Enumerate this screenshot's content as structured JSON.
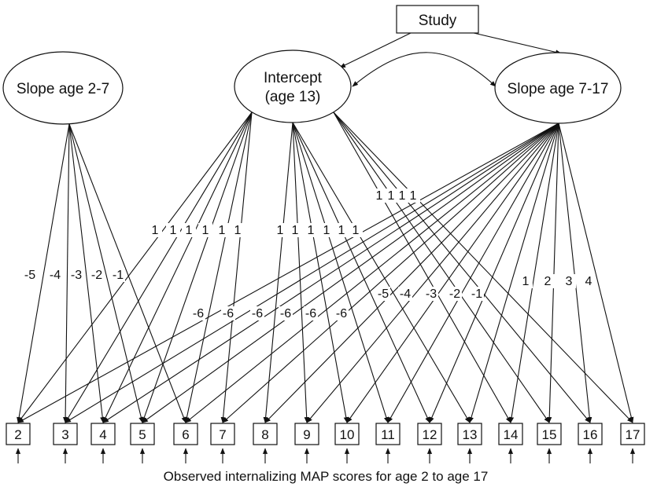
{
  "diagram": {
    "latents": {
      "study": "Study",
      "slope_early": "Slope age 2-7",
      "intercept_line1": "Intercept",
      "intercept_line2": "(age 13)",
      "slope_late": "Slope age 7-17"
    },
    "observed_ages": [
      "2",
      "3",
      "4",
      "5",
      "6",
      "7",
      "8",
      "9",
      "10",
      "11",
      "12",
      "13",
      "14",
      "15",
      "16",
      "17"
    ],
    "loadings": {
      "slope_early": [
        "-5",
        "-4",
        "-3",
        "-2",
        "-1"
      ],
      "intercept_group1": [
        "1",
        "1",
        "1",
        "1",
        "1",
        "1"
      ],
      "intercept_group2": [
        "1",
        "1",
        "1",
        "1",
        "1",
        "1"
      ],
      "intercept_group3": [
        "1",
        "1",
        "1",
        "1"
      ],
      "slope_late_neg6": [
        "-6",
        "-6",
        "-6",
        "-6",
        "-6",
        "-6"
      ],
      "slope_late_neg": [
        "-5",
        "-4",
        "-3",
        "-2",
        "-1"
      ],
      "slope_late_pos": [
        "1",
        "2",
        "3",
        "4"
      ]
    },
    "caption": "Observed internalizing MAP scores for age 2 to age 17"
  }
}
